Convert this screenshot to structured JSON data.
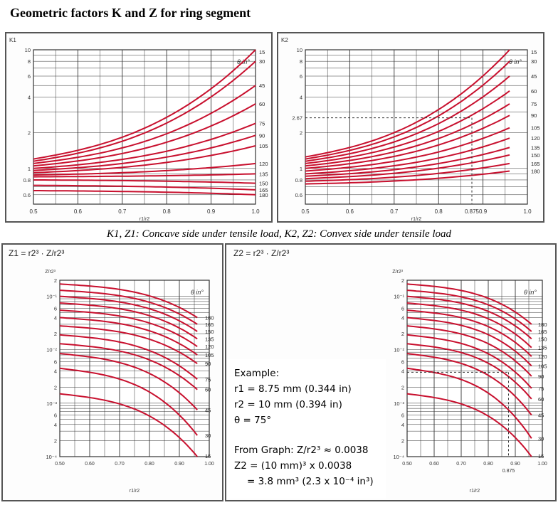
{
  "title": "Geometric factors K and Z for ring segment",
  "caption": "K1, Z1: Concave side under tensile load, K2, Z2: Convex side under tensile load",
  "colors": {
    "curve": "#c8102e",
    "grid": "#333333",
    "panel_bg": "#fdfdfd",
    "frame": "#555555",
    "dash": "#333333"
  },
  "example": {
    "heading": "Example:",
    "r1": "r1 = 8.75 mm (0.344 in)",
    "r2": "r2 = 10 mm (0.394 in)",
    "theta": "θ = 75°",
    "from_graph": "From Graph: Z/r2³ ≈ 0.0038",
    "z2_line1": "Z2 = (10 mm)³ x 0.0038",
    "z2_line2": "= 3.8 mm³ (2.3 x 10⁻⁴ in³)"
  },
  "chart_data": [
    {
      "id": "K1",
      "type": "line",
      "corner_label": "K1",
      "xlabel": "r1/r2",
      "theta_label": "θ in°",
      "yscale": "log",
      "xlim": [
        0.5,
        1.0
      ],
      "ylim": [
        0.5,
        10
      ],
      "x_ticks": [
        "0.5",
        "0.6",
        "0.7",
        "0.8",
        "0.9",
        "1.0"
      ],
      "y_ticks": [
        "10",
        "8",
        "6",
        "4",
        "2",
        "1",
        "0.8",
        "0.6"
      ],
      "series": [
        {
          "name": "15",
          "points": [
            [
              0.5,
              1.2
            ],
            [
              1.0,
              10.0
            ]
          ]
        },
        {
          "name": "30",
          "points": [
            [
              0.5,
              1.15
            ],
            [
              1.0,
              8.0
            ]
          ]
        },
        {
          "name": "45",
          "points": [
            [
              0.5,
              1.1
            ],
            [
              1.0,
              5.0
            ]
          ]
        },
        {
          "name": "60",
          "points": [
            [
              0.5,
              1.05
            ],
            [
              1.0,
              3.5
            ]
          ]
        },
        {
          "name": "75",
          "points": [
            [
              0.5,
              1.0
            ],
            [
              1.0,
              2.4
            ]
          ]
        },
        {
          "name": "90",
          "points": [
            [
              0.5,
              0.96
            ],
            [
              1.0,
              1.9
            ]
          ]
        },
        {
          "name": "105",
          "points": [
            [
              0.5,
              0.92
            ],
            [
              1.0,
              1.55
            ]
          ]
        },
        {
          "name": "120",
          "points": [
            [
              0.5,
              0.88
            ],
            [
              1.0,
              1.1
            ]
          ]
        },
        {
          "name": "135",
          "points": [
            [
              0.5,
              0.85
            ],
            [
              1.0,
              0.9
            ]
          ]
        },
        {
          "name": "150",
          "points": [
            [
              0.5,
              0.8
            ],
            [
              1.0,
              0.75
            ]
          ]
        },
        {
          "name": "165",
          "points": [
            [
              0.5,
              0.72
            ],
            [
              1.0,
              0.66
            ]
          ]
        },
        {
          "name": "180",
          "points": [
            [
              0.5,
              0.65
            ],
            [
              1.0,
              0.6
            ]
          ]
        }
      ]
    },
    {
      "id": "K2",
      "type": "line",
      "corner_label": "K2",
      "xlabel": "r1/r2",
      "theta_label": "θ in°",
      "yscale": "log",
      "xlim": [
        0.5,
        1.0
      ],
      "ylim": [
        0.5,
        10
      ],
      "x_ticks": [
        "0.5",
        "0.6",
        "0.7",
        "0.8",
        "0.875",
        "0.9",
        "1.0"
      ],
      "y_ticks": [
        "10",
        "8",
        "6",
        "4",
        "2.67",
        "2",
        "1",
        "0.8",
        "0.6"
      ],
      "annotation": {
        "x": 0.875,
        "y": 2.67
      },
      "series": [
        {
          "name": "15",
          "points": [
            [
              0.5,
              1.25
            ],
            [
              0.96,
              10.0
            ]
          ]
        },
        {
          "name": "30",
          "points": [
            [
              0.5,
              1.2
            ],
            [
              0.96,
              8.0
            ]
          ]
        },
        {
          "name": "45",
          "points": [
            [
              0.5,
              1.15
            ],
            [
              0.96,
              6.0
            ]
          ]
        },
        {
          "name": "60",
          "points": [
            [
              0.5,
              1.1
            ],
            [
              0.96,
              4.5
            ]
          ]
        },
        {
          "name": "75",
          "points": [
            [
              0.5,
              1.05
            ],
            [
              0.96,
              3.5
            ]
          ]
        },
        {
          "name": "90",
          "points": [
            [
              0.5,
              1.0
            ],
            [
              0.96,
              2.8
            ]
          ]
        },
        {
          "name": "105",
          "points": [
            [
              0.5,
              0.95
            ],
            [
              0.96,
              2.2
            ]
          ]
        },
        {
          "name": "120",
          "points": [
            [
              0.5,
              0.9
            ],
            [
              0.96,
              1.8
            ]
          ]
        },
        {
          "name": "135",
          "points": [
            [
              0.5,
              0.86
            ],
            [
              0.96,
              1.5
            ]
          ]
        },
        {
          "name": "150",
          "points": [
            [
              0.5,
              0.82
            ],
            [
              0.96,
              1.3
            ]
          ]
        },
        {
          "name": "165",
          "points": [
            [
              0.5,
              0.78
            ],
            [
              0.96,
              1.1
            ]
          ]
        },
        {
          "name": "180",
          "points": [
            [
              0.5,
              0.74
            ],
            [
              0.96,
              0.95
            ]
          ]
        }
      ]
    },
    {
      "id": "Z1",
      "type": "line",
      "formula": "Z1 = r2³ · Z/r2³",
      "ylabel": "Z/r2³",
      "xlabel": "r1/r2",
      "theta_label": "θ in°",
      "yscale": "log",
      "xlim": [
        0.5,
        1.0
      ],
      "ylim": [
        0.0001,
        0.2
      ],
      "x_ticks": [
        "0.50",
        "0.60",
        "0.70",
        "0.80",
        "0.90",
        "1.00"
      ],
      "y_ticks": [
        "2",
        "10⁻¹",
        "6",
        "4",
        "2",
        "10⁻²",
        "6",
        "4",
        "2",
        "10⁻³",
        "6",
        "4",
        "2",
        "10⁻⁴"
      ],
      "series": [
        {
          "name": "180",
          "points": [
            [
              0.5,
              0.17
            ],
            [
              0.96,
              0.04
            ]
          ]
        },
        {
          "name": "165",
          "points": [
            [
              0.5,
              0.13
            ],
            [
              0.96,
              0.03
            ]
          ]
        },
        {
          "name": "150",
          "points": [
            [
              0.5,
              0.1
            ],
            [
              0.96,
              0.022
            ]
          ]
        },
        {
          "name": "135",
          "points": [
            [
              0.5,
              0.075
            ],
            [
              0.96,
              0.016
            ]
          ]
        },
        {
          "name": "120",
          "points": [
            [
              0.5,
              0.055
            ],
            [
              0.96,
              0.0115
            ]
          ]
        },
        {
          "name": "105",
          "points": [
            [
              0.5,
              0.04
            ],
            [
              0.96,
              0.008
            ]
          ]
        },
        {
          "name": "90",
          "points": [
            [
              0.5,
              0.028
            ],
            [
              0.96,
              0.0055
            ]
          ]
        },
        {
          "name": "75",
          "points": [
            [
              0.5,
              0.019
            ],
            [
              0.96,
              0.0028
            ]
          ]
        },
        {
          "name": "60",
          "points": [
            [
              0.5,
              0.013
            ],
            [
              0.96,
              0.0018
            ]
          ]
        },
        {
          "name": "45",
          "points": [
            [
              0.5,
              0.0085
            ],
            [
              0.96,
              0.00075
            ]
          ]
        },
        {
          "name": "30",
          "points": [
            [
              0.5,
              0.0045
            ],
            [
              0.96,
              0.00025
            ]
          ]
        },
        {
          "name": "15",
          "points": [
            [
              0.5,
              0.0015
            ],
            [
              0.96,
              0.0001
            ]
          ]
        }
      ]
    },
    {
      "id": "Z2",
      "type": "line",
      "formula": "Z2 = r2³ · Z/r2³",
      "ylabel": "Z/r2³",
      "xlabel": "r1/r2",
      "theta_label": "θ in°",
      "yscale": "log",
      "xlim": [
        0.5,
        1.0
      ],
      "ylim": [
        0.0001,
        0.2
      ],
      "x_ticks": [
        "0.50",
        "0.60",
        "0.70",
        "0.80",
        "0.90",
        "1.00"
      ],
      "extra_x_label": "0.875",
      "y_ticks": [
        "2",
        "10⁻¹",
        "6",
        "4",
        "2",
        "10⁻²",
        "6",
        "4",
        "2",
        "10⁻³",
        "6",
        "4",
        "2",
        "10⁻⁴"
      ],
      "annotation": {
        "x": 0.875,
        "y": 0.0038
      },
      "series": [
        {
          "name": "180",
          "points": [
            [
              0.5,
              0.17
            ],
            [
              0.96,
              0.03
            ]
          ]
        },
        {
          "name": "165",
          "points": [
            [
              0.5,
              0.13
            ],
            [
              0.96,
              0.022
            ]
          ]
        },
        {
          "name": "150",
          "points": [
            [
              0.5,
              0.1
            ],
            [
              0.96,
              0.016
            ]
          ]
        },
        {
          "name": "135",
          "points": [
            [
              0.5,
              0.075
            ],
            [
              0.96,
              0.011
            ]
          ]
        },
        {
          "name": "120",
          "points": [
            [
              0.5,
              0.055
            ],
            [
              0.96,
              0.0075
            ]
          ]
        },
        {
          "name": "105",
          "points": [
            [
              0.5,
              0.04
            ],
            [
              0.96,
              0.005
            ]
          ]
        },
        {
          "name": "90",
          "points": [
            [
              0.5,
              0.028
            ],
            [
              0.96,
              0.0032
            ]
          ]
        },
        {
          "name": "75",
          "points": [
            [
              0.5,
              0.019
            ],
            [
              0.96,
              0.0019
            ]
          ]
        },
        {
          "name": "60",
          "points": [
            [
              0.5,
              0.013
            ],
            [
              0.96,
              0.0012
            ]
          ]
        },
        {
          "name": "45",
          "points": [
            [
              0.5,
              0.0085
            ],
            [
              0.96,
              0.0006
            ]
          ]
        },
        {
          "name": "30",
          "points": [
            [
              0.5,
              0.0045
            ],
            [
              0.96,
              0.00022
            ]
          ]
        },
        {
          "name": "15",
          "points": [
            [
              0.5,
              0.0015
            ],
            [
              0.96,
              0.0001
            ]
          ]
        }
      ]
    }
  ]
}
